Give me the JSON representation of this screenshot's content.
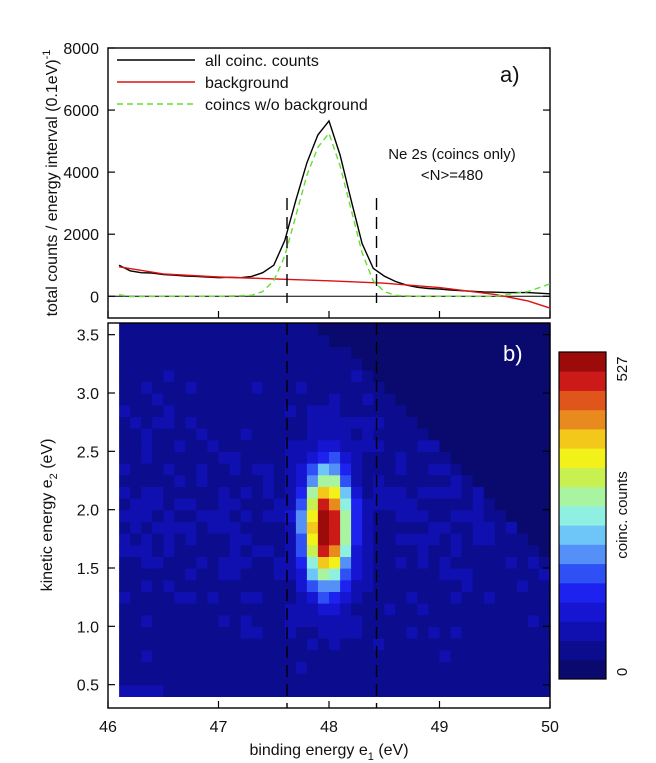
{
  "chart_data": [
    {
      "type": "line",
      "panel_label": "a)",
      "ylabel": "total counts / energy interval (0.1eV)",
      "ylabel_exponent": "-1",
      "xlim": [
        46,
        50
      ],
      "ylim": [
        -700,
        8000
      ],
      "ytick_labels": [
        "0",
        "2000",
        "4000",
        "6000",
        "8000"
      ],
      "annotation_line1": "Ne 2s (coincs only)",
      "annotation_line2": "<N>=480",
      "legend_position": "top-left",
      "series": [
        {
          "name": "all coinc. counts",
          "color": "#000000",
          "style": "solid",
          "x": [
            46.1,
            46.2,
            46.3,
            46.4,
            46.5,
            46.6,
            46.7,
            46.8,
            46.9,
            47.0,
            47.1,
            47.2,
            47.3,
            47.4,
            47.5,
            47.6,
            47.7,
            47.8,
            47.9,
            48.0,
            48.1,
            48.2,
            48.3,
            48.4,
            48.5,
            48.6,
            48.7,
            48.8,
            48.9,
            49.0,
            49.1,
            49.2,
            49.3,
            49.4,
            49.5,
            49.6,
            49.7,
            49.8,
            49.9,
            50.0
          ],
          "y": [
            1000,
            820,
            760,
            750,
            700,
            680,
            650,
            640,
            620,
            600,
            610,
            600,
            640,
            760,
            1000,
            1800,
            3100,
            4300,
            5200,
            5650,
            4550,
            3100,
            1700,
            900,
            650,
            480,
            360,
            290,
            250,
            230,
            200,
            180,
            160,
            140,
            130,
            120,
            120,
            120,
            100,
            80
          ]
        },
        {
          "name": "background",
          "color": "#dd1111",
          "style": "solid",
          "x": [
            46.1,
            46.5,
            47.0,
            47.5,
            48.0,
            48.5,
            49.0,
            49.5,
            49.8,
            50.0
          ],
          "y": [
            950,
            720,
            620,
            560,
            500,
            420,
            280,
            60,
            -150,
            -380
          ]
        },
        {
          "name": "coincs w/o background",
          "color": "#66dd33",
          "style": "dashed",
          "x": [
            46.1,
            46.2,
            46.5,
            47.0,
            47.3,
            47.4,
            47.5,
            47.6,
            47.7,
            47.8,
            47.9,
            48.0,
            48.1,
            48.2,
            48.3,
            48.4,
            48.5,
            48.6,
            48.8,
            49.0,
            49.5,
            49.8,
            50.0
          ],
          "y": [
            50,
            -10,
            0,
            0,
            30,
            150,
            500,
            1300,
            2600,
            3900,
            4800,
            5250,
            4200,
            2800,
            1400,
            500,
            150,
            30,
            0,
            0,
            0,
            150,
            400
          ]
        }
      ],
      "reference_lines_x": [
        47.62,
        48.43
      ]
    },
    {
      "type": "heatmap",
      "panel_label": "b)",
      "xlabel": "binding energy e",
      "xlabel_subscript": "1",
      "xlabel_unit": " (eV)",
      "ylabel": "kinetic energy e",
      "ylabel_subscript": "2",
      "ylabel_unit": " (eV)",
      "xlim": [
        46,
        50
      ],
      "ylim": [
        0.3,
        3.6
      ],
      "xtick_labels": [
        "46",
        "47",
        "48",
        "49",
        "50"
      ],
      "ytick_labels": [
        "0.5",
        "1.0",
        "1.5",
        "2.0",
        "2.5",
        "3.0",
        "3.5"
      ],
      "peak": {
        "x": 47.98,
        "y": 1.85,
        "value": 527
      },
      "colorbar_label": "coinc. counts",
      "colorbar_range": [
        0,
        527
      ],
      "colorbar_min_label": "0",
      "colorbar_max_label": "527",
      "colormap": [
        "#0a0a6e",
        "#0c0c8e",
        "#1010b0",
        "#1515d2",
        "#1e22ee",
        "#2e50f4",
        "#5590f8",
        "#6ec6f8",
        "#8ff0e2",
        "#a8f4a0",
        "#c8f050",
        "#f2f21a",
        "#f4c81a",
        "#e88a1e",
        "#e0551c",
        "#cc1a18",
        "#9c0a0a"
      ],
      "reference_lines_x": [
        47.62,
        48.43
      ]
    }
  ]
}
